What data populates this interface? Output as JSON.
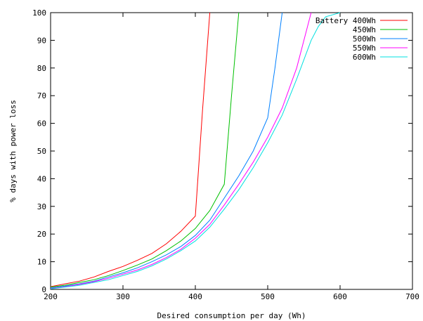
{
  "chart_data": {
    "type": "line",
    "title": "",
    "xlabel": "Desired consumption per day (Wh)",
    "ylabel": "% days with power loss",
    "xlim": [
      200,
      700
    ],
    "ylim": [
      0,
      100
    ],
    "x_ticks": [
      200,
      300,
      400,
      500,
      600,
      700
    ],
    "y_ticks": [
      0,
      10,
      20,
      30,
      40,
      50,
      60,
      70,
      80,
      90,
      100
    ],
    "grid": false,
    "legend": {
      "title": "Battery",
      "placement": "top-right"
    },
    "series": [
      {
        "name": "400Wh",
        "color": "#ff0000",
        "points": [
          [
            200,
            1
          ],
          [
            220,
            2
          ],
          [
            240,
            3
          ],
          [
            260,
            4.5
          ],
          [
            280,
            6.5
          ],
          [
            300,
            8.3
          ],
          [
            320,
            10.5
          ],
          [
            340,
            13
          ],
          [
            360,
            16.5
          ],
          [
            380,
            21
          ],
          [
            400,
            26.5
          ],
          [
            410,
            65
          ],
          [
            420,
            100
          ]
        ]
      },
      {
        "name": "450Wh",
        "color": "#00c000",
        "points": [
          [
            200,
            0.8
          ],
          [
            220,
            1.5
          ],
          [
            240,
            2.5
          ],
          [
            260,
            3.5
          ],
          [
            280,
            5
          ],
          [
            300,
            6.8
          ],
          [
            320,
            8.8
          ],
          [
            340,
            11
          ],
          [
            360,
            14
          ],
          [
            380,
            17.5
          ],
          [
            400,
            22
          ],
          [
            420,
            28.5
          ],
          [
            440,
            38
          ],
          [
            450,
            70
          ],
          [
            460,
            100
          ]
        ]
      },
      {
        "name": "500Wh",
        "color": "#0080ff",
        "points": [
          [
            200,
            0.5
          ],
          [
            220,
            1.2
          ],
          [
            240,
            2
          ],
          [
            260,
            3
          ],
          [
            280,
            4.5
          ],
          [
            300,
            6
          ],
          [
            320,
            7.8
          ],
          [
            340,
            10
          ],
          [
            360,
            12.5
          ],
          [
            380,
            15.5
          ],
          [
            400,
            19.5
          ],
          [
            420,
            25
          ],
          [
            440,
            33
          ],
          [
            460,
            41
          ],
          [
            480,
            50
          ],
          [
            500,
            62
          ],
          [
            510,
            80
          ],
          [
            520,
            100
          ]
        ]
      },
      {
        "name": "550Wh",
        "color": "#ff00ff",
        "points": [
          [
            200,
            0.3
          ],
          [
            220,
            1
          ],
          [
            240,
            1.8
          ],
          [
            260,
            2.8
          ],
          [
            280,
            4
          ],
          [
            300,
            5.5
          ],
          [
            320,
            7
          ],
          [
            340,
            9
          ],
          [
            360,
            11.5
          ],
          [
            380,
            14.5
          ],
          [
            400,
            18.5
          ],
          [
            420,
            23.5
          ],
          [
            440,
            30.5
          ],
          [
            460,
            38
          ],
          [
            480,
            46
          ],
          [
            500,
            55
          ],
          [
            520,
            65.5
          ],
          [
            540,
            80
          ],
          [
            560,
            100
          ]
        ]
      },
      {
        "name": "600Wh",
        "color": "#00e0e0",
        "points": [
          [
            200,
            0.2
          ],
          [
            220,
            0.8
          ],
          [
            240,
            1.5
          ],
          [
            260,
            2.5
          ],
          [
            280,
            3.5
          ],
          [
            300,
            5
          ],
          [
            320,
            6.5
          ],
          [
            340,
            8.5
          ],
          [
            360,
            11
          ],
          [
            380,
            14
          ],
          [
            400,
            17.5
          ],
          [
            420,
            22.5
          ],
          [
            440,
            29
          ],
          [
            460,
            36
          ],
          [
            480,
            44
          ],
          [
            500,
            53
          ],
          [
            520,
            63
          ],
          [
            540,
            76
          ],
          [
            560,
            90
          ],
          [
            570,
            95
          ],
          [
            580,
            98.5
          ],
          [
            600,
            100
          ]
        ]
      }
    ]
  }
}
